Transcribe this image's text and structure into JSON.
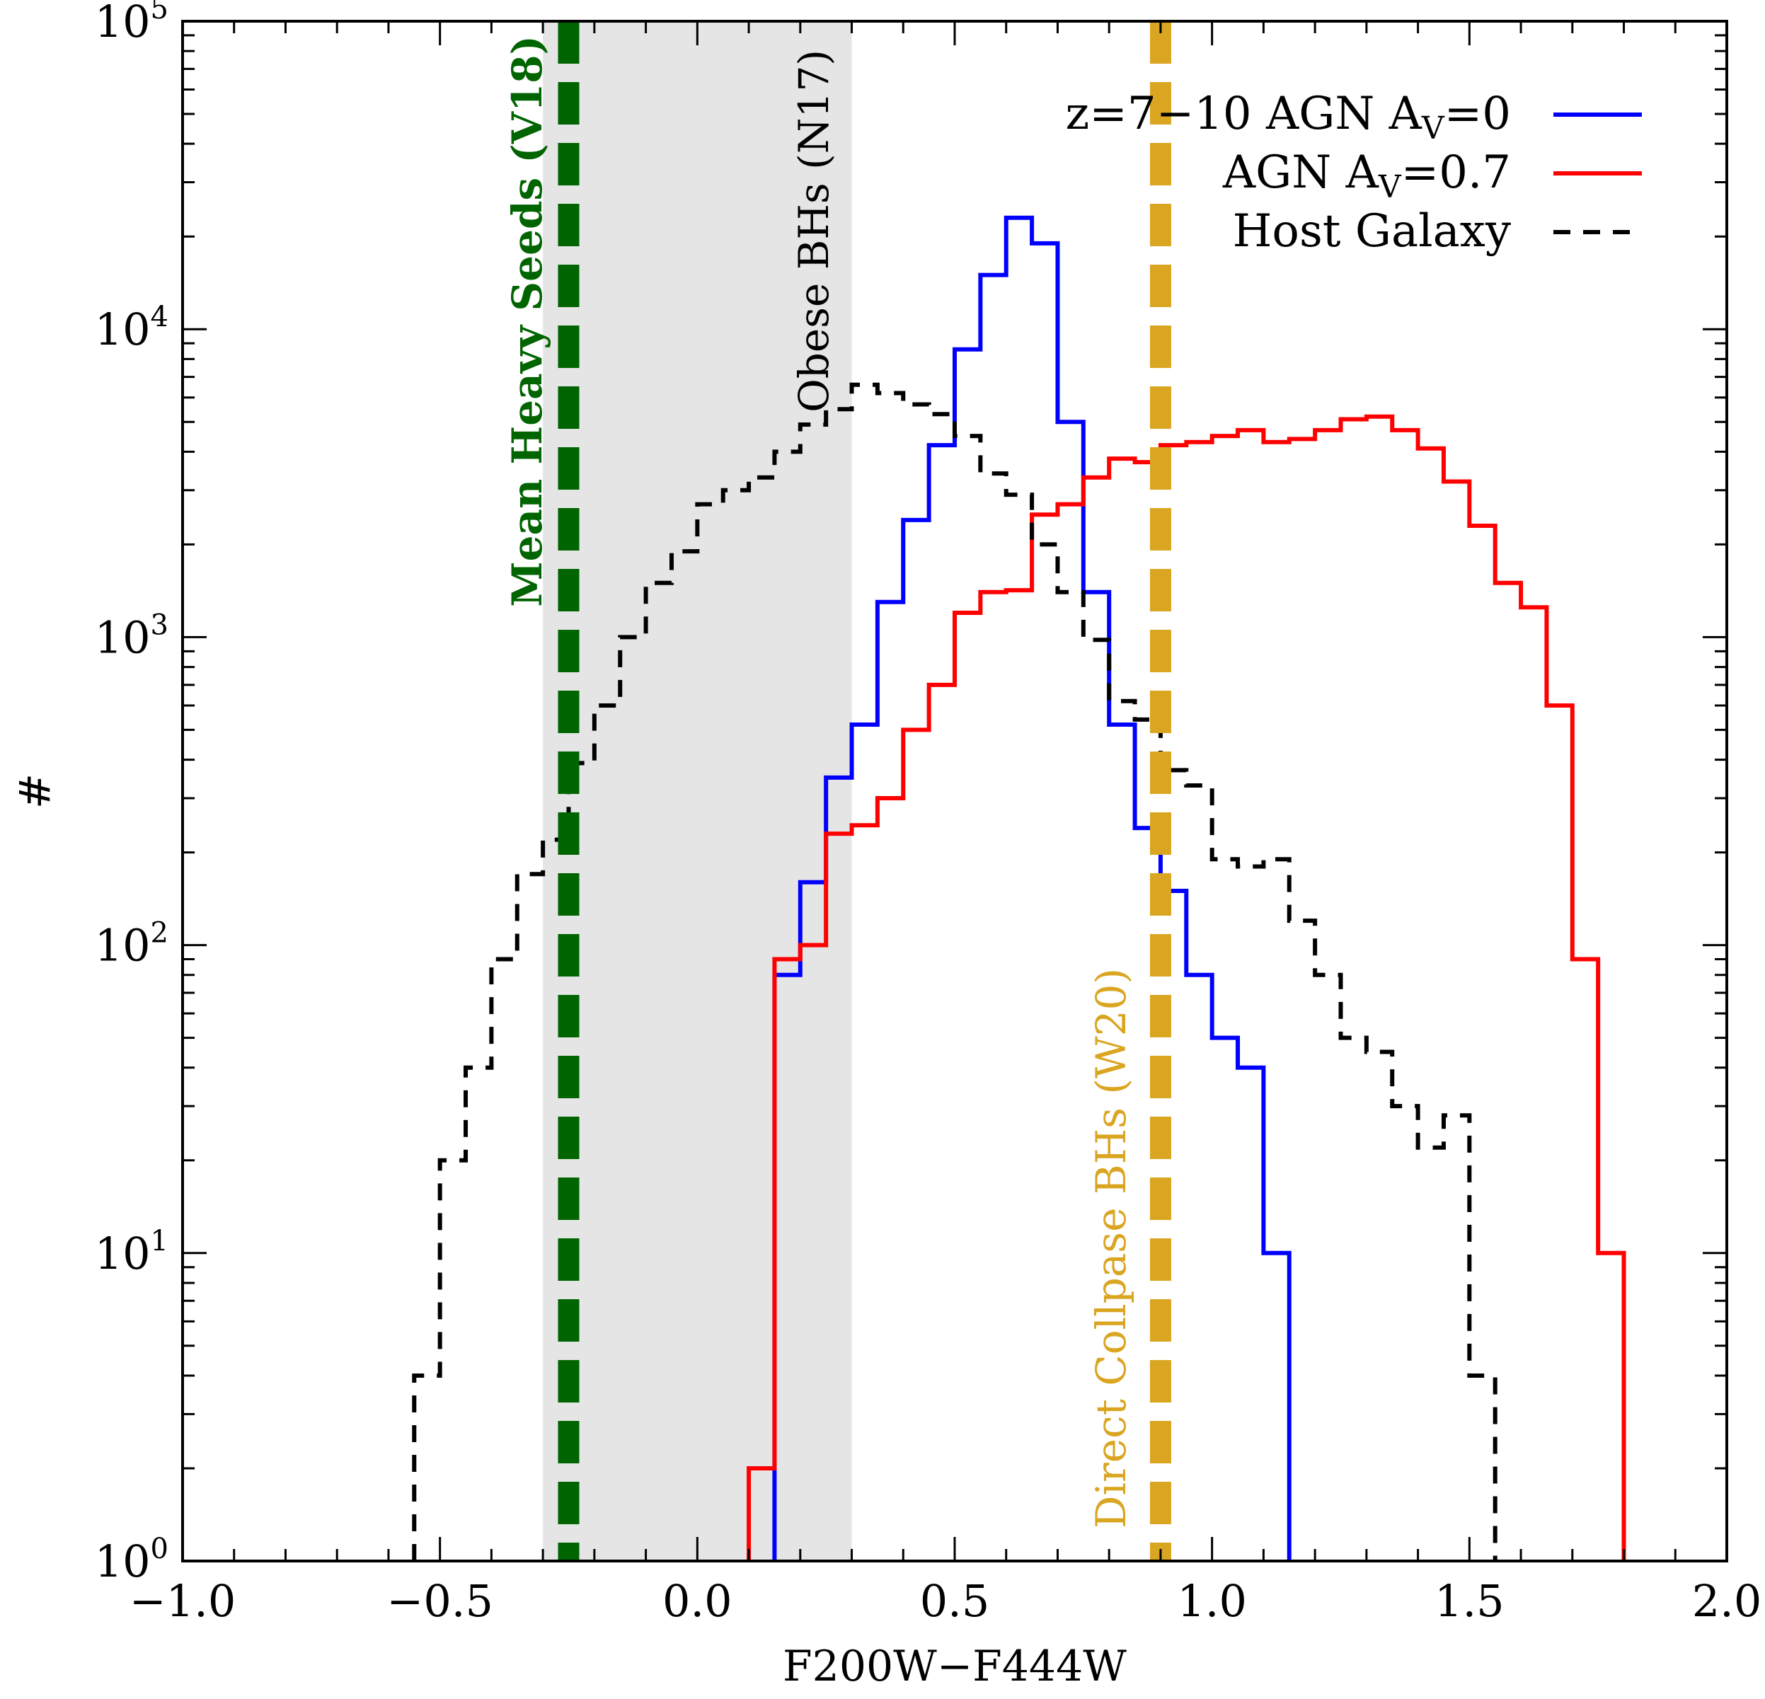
{
  "chart_data": {
    "type": "line",
    "xlabel": "F200W−F444W",
    "ylabel": "#",
    "xlim": [
      -1.0,
      2.0
    ],
    "ylim": [
      1,
      100000
    ],
    "yscale": "log",
    "grid": false,
    "legend_position": "top-right",
    "x_ticks": [
      {
        "value": -1.0,
        "label": "−1.0"
      },
      {
        "value": -0.5,
        "label": "−0.5"
      },
      {
        "value": 0.0,
        "label": "0.0"
      },
      {
        "value": 0.5,
        "label": "0.5"
      },
      {
        "value": 1.0,
        "label": "1.0"
      },
      {
        "value": 1.5,
        "label": "1.5"
      },
      {
        "value": 2.0,
        "label": "2.0"
      }
    ],
    "y_ticks": [
      {
        "value": 1,
        "base": "10",
        "exp": "0"
      },
      {
        "value": 10,
        "base": "10",
        "exp": "1"
      },
      {
        "value": 100,
        "base": "10",
        "exp": "2"
      },
      {
        "value": 1000,
        "base": "10",
        "exp": "3"
      },
      {
        "value": 10000,
        "base": "10",
        "exp": "4"
      },
      {
        "value": 100000,
        "base": "10",
        "exp": "5"
      }
    ],
    "bin_width": 0.05,
    "series": [
      {
        "name": "z=7−10 AGN A_V=0",
        "legend_main": "z=7−10 AGN A",
        "legend_sub": "V",
        "legend_tail": "=0",
        "color": "#0000ff",
        "style": "solid",
        "bins_start": 0.15,
        "values": [
          80,
          160,
          350,
          520,
          1300,
          2400,
          4200,
          8600,
          15000,
          23000,
          19000,
          5000,
          1400,
          520,
          240,
          150,
          80,
          50,
          40,
          10
        ]
      },
      {
        "name": "AGN A_V=0.7",
        "legend_main": "AGN A",
        "legend_sub": "V",
        "legend_tail": "=0.7",
        "color": "#ff0000",
        "style": "solid",
        "bins_start": 0.1,
        "values": [
          2,
          90,
          100,
          230,
          245,
          300,
          500,
          700,
          1200,
          1400,
          1420,
          2500,
          2700,
          3300,
          3800,
          3700,
          4200,
          4300,
          4500,
          4700,
          4300,
          4400,
          4700,
          5100,
          5200,
          4700,
          4100,
          3200,
          2300,
          1500,
          1250,
          600,
          90,
          10
        ]
      },
      {
        "name": "Host Galaxy",
        "legend_main": "Host Galaxy",
        "legend_sub": "",
        "legend_tail": "",
        "color": "#000000",
        "style": "dashed",
        "bins_start": -0.55,
        "values": [
          4,
          20,
          40,
          90,
          170,
          220,
          390,
          600,
          1000,
          1500,
          1900,
          2700,
          3000,
          3300,
          4000,
          4900,
          5500,
          6600,
          6200,
          5700,
          5300,
          4500,
          3400,
          2900,
          2000,
          1400,
          980,
          620,
          540,
          370,
          330,
          190,
          180,
          190,
          120,
          80,
          50,
          45,
          30,
          22,
          28,
          4
        ]
      }
    ],
    "shaded_region": {
      "x0": -0.3,
      "x1": 0.3,
      "color": "#e5e5e5"
    },
    "vlines": [
      {
        "x": -0.25,
        "color": "#006400",
        "label": "Mean Heavy Seeds (V18)"
      },
      {
        "x": 0.9,
        "color": "#daa520",
        "label": "Direct Collpase BHs (W20)"
      }
    ],
    "annotations": [
      {
        "text": "Mean Heavy Seeds (V18)",
        "color": "#006400"
      },
      {
        "text": "Obese BHs (N17)",
        "color": "#000000"
      },
      {
        "text": "Direct Collpase BHs (W20)",
        "color": "#daa520"
      }
    ]
  }
}
